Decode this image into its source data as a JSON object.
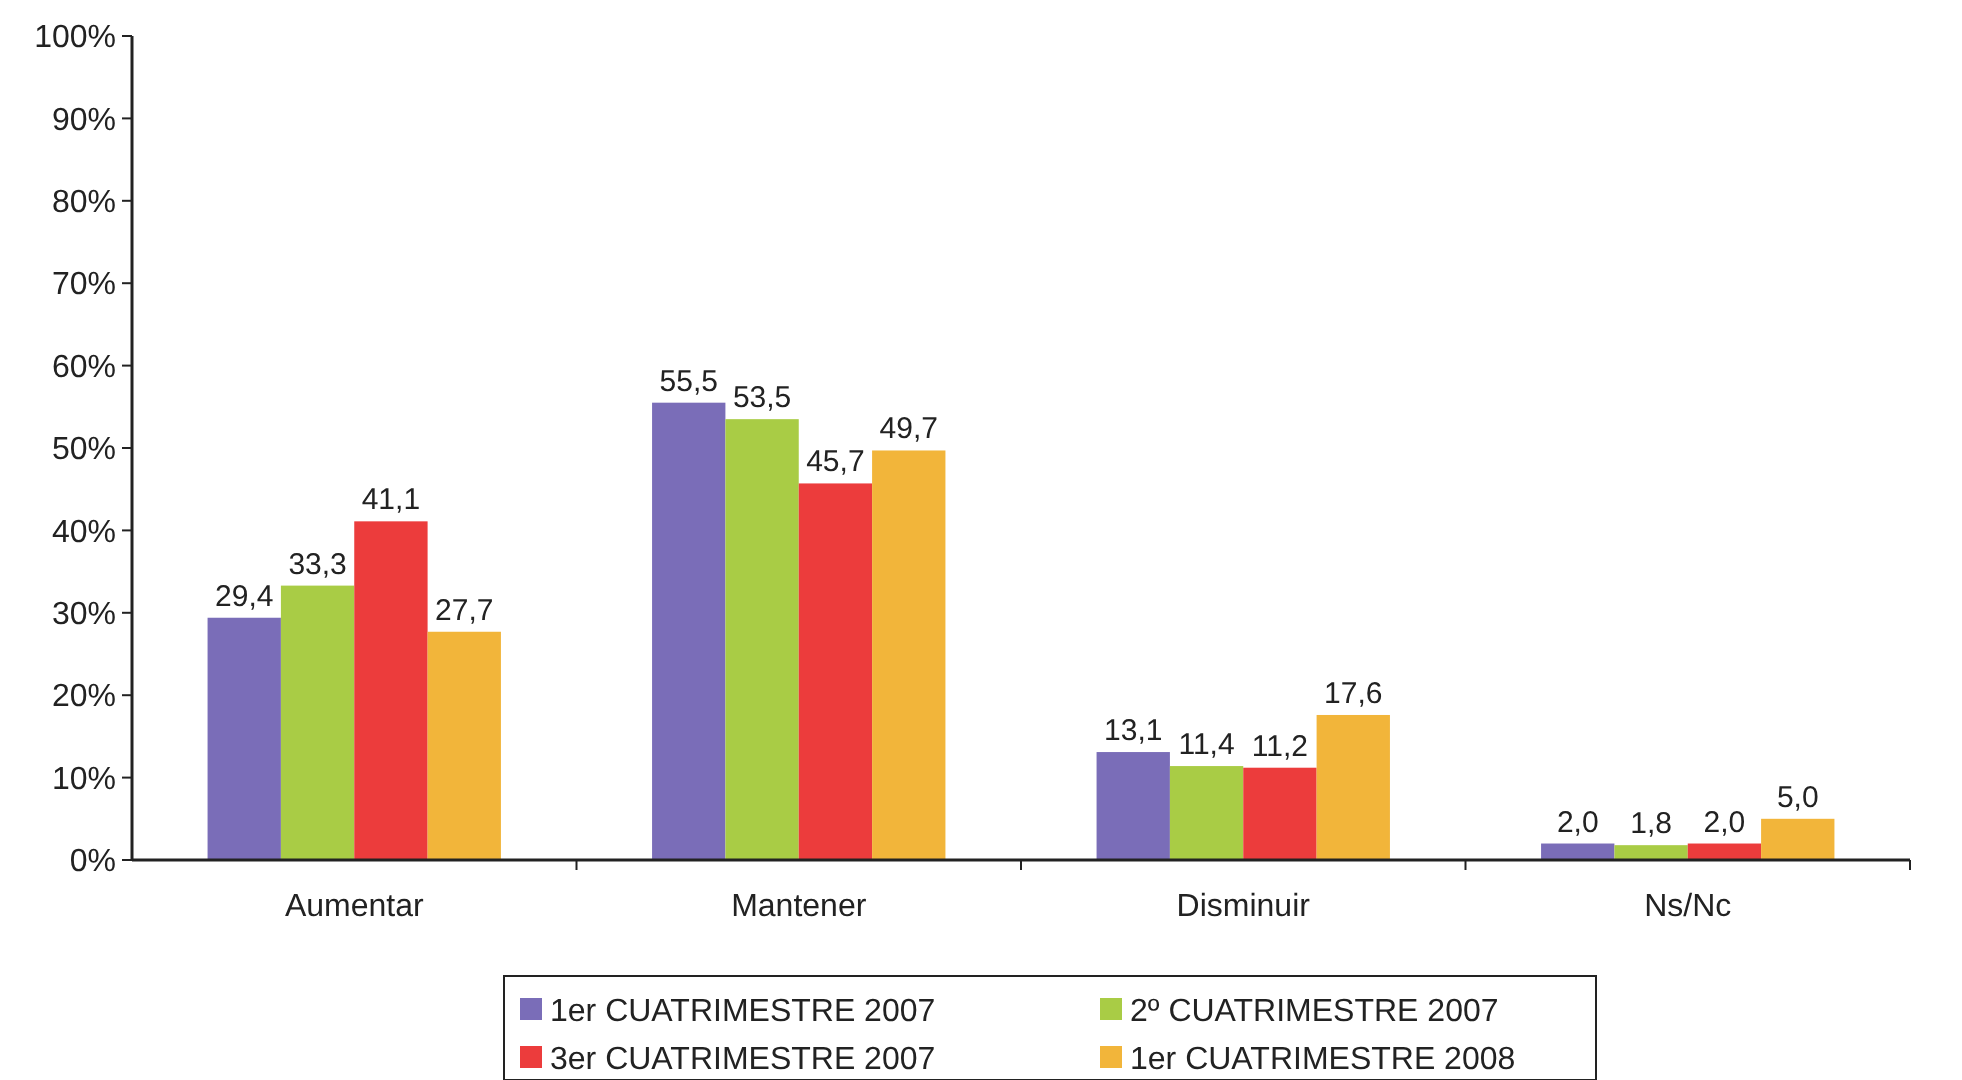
{
  "chart_data": {
    "type": "bar",
    "categories": [
      "Aumentar",
      "Mantener",
      "Disminuir",
      "Ns/Nc"
    ],
    "series": [
      {
        "name": "1er CUATRIMESTRE 2007",
        "color": "#7a6db8",
        "values": [
          29.4,
          55.5,
          13.1,
          2.0
        ],
        "value_labels": [
          "29,4",
          "55,5",
          "13,1",
          "2,0"
        ]
      },
      {
        "name": "2º CUATRIMESTRE 2007",
        "color": "#a9cc45",
        "values": [
          33.3,
          53.5,
          11.4,
          1.8
        ],
        "value_labels": [
          "33,3",
          "53,5",
          "11,4",
          "1,8"
        ]
      },
      {
        "name": "3er CUATRIMESTRE 2007",
        "color": "#ec3c3c",
        "values": [
          41.1,
          45.7,
          11.2,
          2.0
        ],
        "value_labels": [
          "41,1",
          "45,7",
          "11,2",
          "2,0"
        ]
      },
      {
        "name": "1er CUATRIMESTRE 2008",
        "color": "#f2b53a",
        "values": [
          27.7,
          49.7,
          17.6,
          5.0
        ],
        "value_labels": [
          "27,7",
          "49,7",
          "17,6",
          "5,0"
        ]
      }
    ],
    "ylim": [
      0,
      100
    ],
    "yticks": [
      {
        "value": 0,
        "label": "0%"
      },
      {
        "value": 10,
        "label": "10%"
      },
      {
        "value": 20,
        "label": "20%"
      },
      {
        "value": 30,
        "label": "30%"
      },
      {
        "value": 40,
        "label": "40%"
      },
      {
        "value": 50,
        "label": "50%"
      },
      {
        "value": 60,
        "label": "60%"
      },
      {
        "value": 70,
        "label": "70%"
      },
      {
        "value": 80,
        "label": "80%"
      },
      {
        "value": 90,
        "label": "90%"
      },
      {
        "value": 100,
        "label": "100%"
      }
    ],
    "grid": false,
    "legend": "bottom"
  }
}
